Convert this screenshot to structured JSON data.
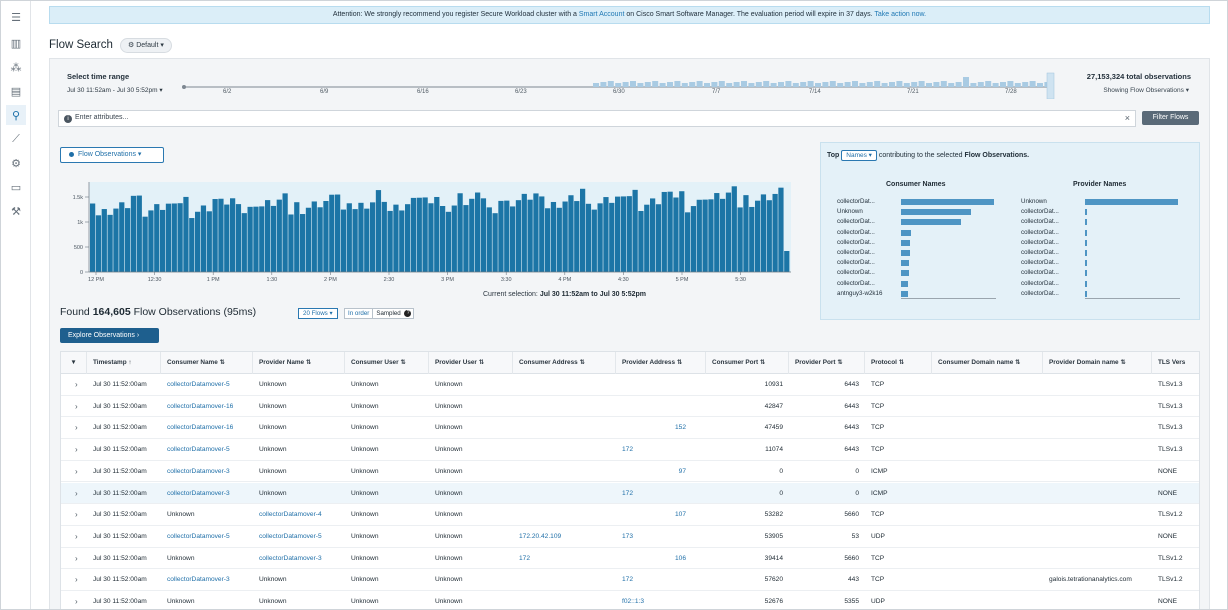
{
  "banner": {
    "prefix": "Attention: We strongly recommend you register Secure Workload cluster with a ",
    "link1": "Smart Account",
    "middle": " on Cisco Smart Software Manager. The evaluation period will expire in 37 days. ",
    "link2": "Take action now."
  },
  "page": {
    "title": "Flow Search",
    "preset": "Default"
  },
  "time_range": {
    "label": "Select time range",
    "value": "Jul 30 11:52am - Jul 30 5:52pm",
    "ticks": [
      "6/2",
      "6/9",
      "6/16",
      "6/23",
      "6/30",
      "7/7",
      "7/14",
      "7/21",
      "7/28"
    ],
    "total_observations": "27,153,324 total observations",
    "showing": "Showing Flow Observations"
  },
  "filter": {
    "placeholder": "Enter attributes...",
    "button": "Filter Flows"
  },
  "metric_selector": "Flow Observations",
  "chart": {
    "y_ticks": [
      "1.5k",
      "1k",
      "500",
      "0"
    ],
    "x_ticks": [
      "12 PM",
      "12:30",
      "1 PM",
      "1:30",
      "2 PM",
      "2:30",
      "3 PM",
      "3:30",
      "4 PM",
      "4:30",
      "5 PM",
      "5:30"
    ],
    "current_selection_label": "Current selection:",
    "current_selection_value": "Jul 30 11:52am to Jul 30 5:52pm"
  },
  "top_names": {
    "prefix": "Top",
    "selector": "Names",
    "suffix": "contributing to the selected",
    "metric": "Flow Observations.",
    "consumer_title": "Consumer Names",
    "provider_title": "Provider Names",
    "consumer": [
      {
        "name": "collectorDat...",
        "value": 1.0
      },
      {
        "name": "Unknown",
        "value": 0.75
      },
      {
        "name": "collectorDat...",
        "value": 0.65
      },
      {
        "name": "collectorDat...",
        "value": 0.11
      },
      {
        "name": "collectorDat...",
        "value": 0.1
      },
      {
        "name": "collectorDat...",
        "value": 0.1
      },
      {
        "name": "collectorDat...",
        "value": 0.09
      },
      {
        "name": "collectorDat...",
        "value": 0.09
      },
      {
        "name": "collectorDat...",
        "value": 0.08
      },
      {
        "name": "antnguy3-w2k16",
        "value": 0.07
      }
    ],
    "provider": [
      {
        "name": "Unknown",
        "value": 1.0
      },
      {
        "name": "collectorDat...",
        "value": 0.02
      },
      {
        "name": "collectorDat...",
        "value": 0.02
      },
      {
        "name": "collectorDat...",
        "value": 0.02
      },
      {
        "name": "collectorDat...",
        "value": 0.02
      },
      {
        "name": "collectorDat...",
        "value": 0.02
      },
      {
        "name": "collectorDat...",
        "value": 0.02
      },
      {
        "name": "collectorDat...",
        "value": 0.02
      },
      {
        "name": "collectorDat...",
        "value": 0.02
      },
      {
        "name": "collectorDat...",
        "value": 0.02
      }
    ]
  },
  "results": {
    "found_prefix": "Found",
    "count": "164,605",
    "found_suffix": "Flow Observations (95ms)",
    "page_size": "20 Flows",
    "order_in": "In order",
    "order_sampled": "Sampled",
    "explore": "Explore Observations"
  },
  "table": {
    "columns": [
      "Timestamp ↑",
      "Consumer Name ⇅",
      "Provider Name ⇅",
      "Consumer User ⇅",
      "Provider User ⇅",
      "Consumer Address ⇅",
      "Provider Address ⇅",
      "Consumer Port ⇅",
      "Provider Port ⇅",
      "Protocol ⇅",
      "Consumer Domain name ⇅",
      "Provider Domain name ⇅",
      "TLS Vers"
    ],
    "rows": [
      {
        "ts": "Jul 30 11:52:00am",
        "cname": "collectorDatamover-5",
        "pname": "Unknown",
        "cuser": "Unknown",
        "puser": "Unknown",
        "caddr": "",
        "paddr": "",
        "cport": "10931",
        "pport": "6443",
        "proto": "TCP",
        "cdom": "",
        "pdom": "",
        "tls": "TLSv1.3",
        "clink": true,
        "plink": false
      },
      {
        "ts": "Jul 30 11:52:00am",
        "cname": "collectorDatamover-16",
        "pname": "Unknown",
        "cuser": "Unknown",
        "puser": "Unknown",
        "caddr": "",
        "paddr": "",
        "cport": "42847",
        "pport": "6443",
        "proto": "TCP",
        "cdom": "",
        "pdom": "",
        "tls": "TLSv1.3",
        "clink": true,
        "plink": false
      },
      {
        "ts": "Jul 30 11:52:00am",
        "cname": "collectorDatamover-16",
        "pname": "Unknown",
        "cuser": "Unknown",
        "puser": "Unknown",
        "caddr": "",
        "paddr": "152",
        "cport": "47459",
        "pport": "6443",
        "proto": "TCP",
        "cdom": "",
        "pdom": "",
        "tls": "TLSv1.3",
        "clink": true,
        "plink": false
      },
      {
        "ts": "Jul 30 11:52:00am",
        "cname": "collectorDatamover-5",
        "pname": "Unknown",
        "cuser": "Unknown",
        "puser": "Unknown",
        "caddr": "",
        "paddr": "172",
        "cport": "11074",
        "pport": "6443",
        "proto": "TCP",
        "cdom": "",
        "pdom": "",
        "tls": "TLSv1.3",
        "clink": true,
        "plink": false
      },
      {
        "ts": "Jul 30 11:52:00am",
        "cname": "collectorDatamover-3",
        "pname": "Unknown",
        "cuser": "Unknown",
        "puser": "Unknown",
        "caddr": "",
        "paddr": "97",
        "cport": "0",
        "pport": "0",
        "proto": "ICMP",
        "cdom": "",
        "pdom": "",
        "tls": "NONE",
        "clink": true,
        "plink": false
      },
      {
        "ts": "Jul 30 11:52:00am",
        "cname": "collectorDatamover-3",
        "pname": "Unknown",
        "cuser": "Unknown",
        "puser": "Unknown",
        "caddr": "",
        "paddr": "172",
        "cport": "0",
        "pport": "0",
        "proto": "ICMP",
        "cdom": "",
        "pdom": "",
        "tls": "NONE",
        "clink": true,
        "plink": false
      },
      {
        "ts": "Jul 30 11:52:00am",
        "cname": "Unknown",
        "pname": "collectorDatamover-4",
        "cuser": "Unknown",
        "puser": "Unknown",
        "caddr": "",
        "paddr": "107",
        "cport": "53282",
        "pport": "5660",
        "proto": "TCP",
        "cdom": "",
        "pdom": "",
        "tls": "TLSv1.2",
        "clink": false,
        "plink": true
      },
      {
        "ts": "Jul 30 11:52:00am",
        "cname": "collectorDatamover-5",
        "pname": "collectorDatamover-5",
        "cuser": "Unknown",
        "puser": "Unknown",
        "caddr": "172.20.42.109",
        "paddr": "173",
        "cport": "53905",
        "pport": "53",
        "proto": "UDP",
        "cdom": "",
        "pdom": "",
        "tls": "NONE",
        "clink": true,
        "plink": true
      },
      {
        "ts": "Jul 30 11:52:00am",
        "cname": "Unknown",
        "pname": "collectorDatamover-3",
        "cuser": "Unknown",
        "puser": "Unknown",
        "caddr": "172",
        "paddr": "106",
        "cport": "39414",
        "pport": "5660",
        "proto": "TCP",
        "cdom": "",
        "pdom": "",
        "tls": "TLSv1.2",
        "clink": false,
        "plink": true
      },
      {
        "ts": "Jul 30 11:52:00am",
        "cname": "collectorDatamover-3",
        "pname": "Unknown",
        "cuser": "Unknown",
        "puser": "Unknown",
        "caddr": "",
        "paddr": "172",
        "cport": "57620",
        "pport": "443",
        "proto": "TCP",
        "cdom": "",
        "pdom": "galois.tetrationanalytics.com",
        "tls": "TLSv1.2",
        "clink": true,
        "plink": false
      },
      {
        "ts": "Jul 30 11:52:00am",
        "cname": "Unknown",
        "pname": "Unknown",
        "cuser": "Unknown",
        "puser": "Unknown",
        "caddr": "",
        "paddr": "f02::1:3",
        "cport": "52676",
        "pport": "5355",
        "proto": "UDP",
        "cdom": "",
        "pdom": "",
        "tls": "NONE",
        "clink": false,
        "plink": false
      }
    ]
  },
  "colors": {
    "accent": "#1f6fa8",
    "bar": "#1c75a6",
    "banner_bg": "#dbeef8"
  }
}
